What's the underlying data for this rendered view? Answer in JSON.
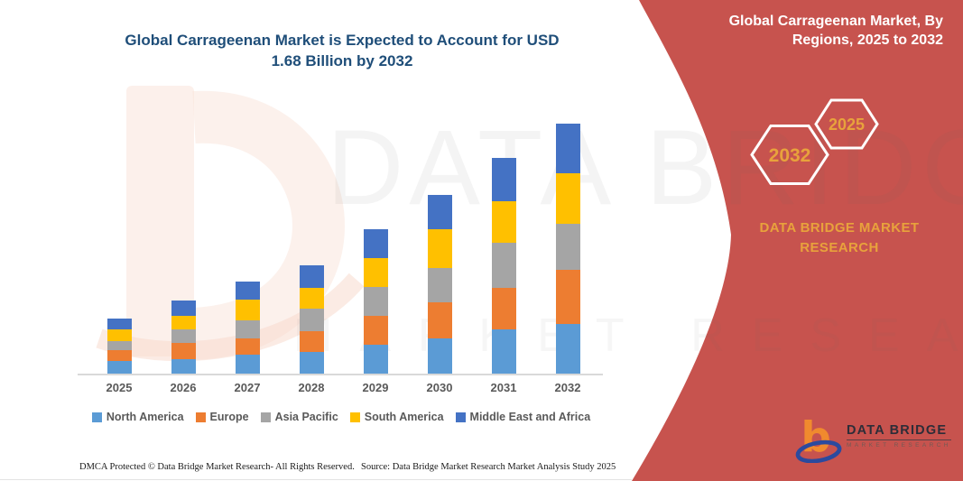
{
  "header": {
    "title_line1": "Global Carrageenan Market is Expected to Account for USD",
    "title_line2": "1.68 Billion by 2032"
  },
  "watermark": {
    "brand": "DATA BRIDGE",
    "sub": "MARKET RESEARCH"
  },
  "panel": {
    "title_line1": "Global Carrageenan Market, By",
    "title_line2": "Regions, 2025 to 2032",
    "hex_left_year": "2032",
    "hex_right_year": "2025",
    "brand_line1": "DATA BRIDGE MARKET",
    "brand_line2": "RESEARCH",
    "accent_color": "#E8A23C",
    "panel_color": "#C7534E",
    "logo": {
      "glyph": "b",
      "name": "DATA BRIDGE",
      "sub": "MARKET RESEARCH"
    }
  },
  "footer": {
    "dmca": "DMCA Protected © Data Bridge Market Research-  All Rights Reserved.",
    "source": "Source: Data Bridge Market Research  Market Analysis Study 2025"
  },
  "chart_data": {
    "type": "bar",
    "subtype": "stacked-column",
    "title": "Global Carrageenan Market is Expected to Account for USD 1.68 Billion by 2032",
    "unit": "USD Billion (estimated from bar heights; 2032 total = 1.68)",
    "categories": [
      "2025",
      "2026",
      "2027",
      "2028",
      "2029",
      "2030",
      "2031",
      "2032"
    ],
    "series": [
      {
        "name": "North America",
        "color": "#5B9BD5",
        "values": [
          0.09,
          0.1,
          0.13,
          0.15,
          0.2,
          0.24,
          0.3,
          0.34
        ]
      },
      {
        "name": "Europe",
        "color": "#ED7D31",
        "values": [
          0.07,
          0.11,
          0.11,
          0.14,
          0.19,
          0.24,
          0.28,
          0.36
        ]
      },
      {
        "name": "Asia Pacific",
        "color": "#A5A5A5",
        "values": [
          0.06,
          0.09,
          0.12,
          0.15,
          0.19,
          0.23,
          0.3,
          0.31
        ]
      },
      {
        "name": "South America",
        "color": "#FFC000",
        "values": [
          0.08,
          0.09,
          0.14,
          0.14,
          0.19,
          0.26,
          0.28,
          0.34
        ]
      },
      {
        "name": "Middle East and Africa",
        "color": "#4472C4",
        "values": [
          0.07,
          0.1,
          0.12,
          0.15,
          0.19,
          0.23,
          0.29,
          0.33
        ]
      }
    ],
    "totals": [
      0.37,
      0.49,
      0.62,
      0.73,
      0.96,
      1.2,
      1.45,
      1.68
    ],
    "xlabel": "",
    "ylabel": "",
    "ylim": [
      0,
      1.8
    ],
    "grid": false,
    "y_axis_shown": false,
    "legend_position": "bottom"
  }
}
